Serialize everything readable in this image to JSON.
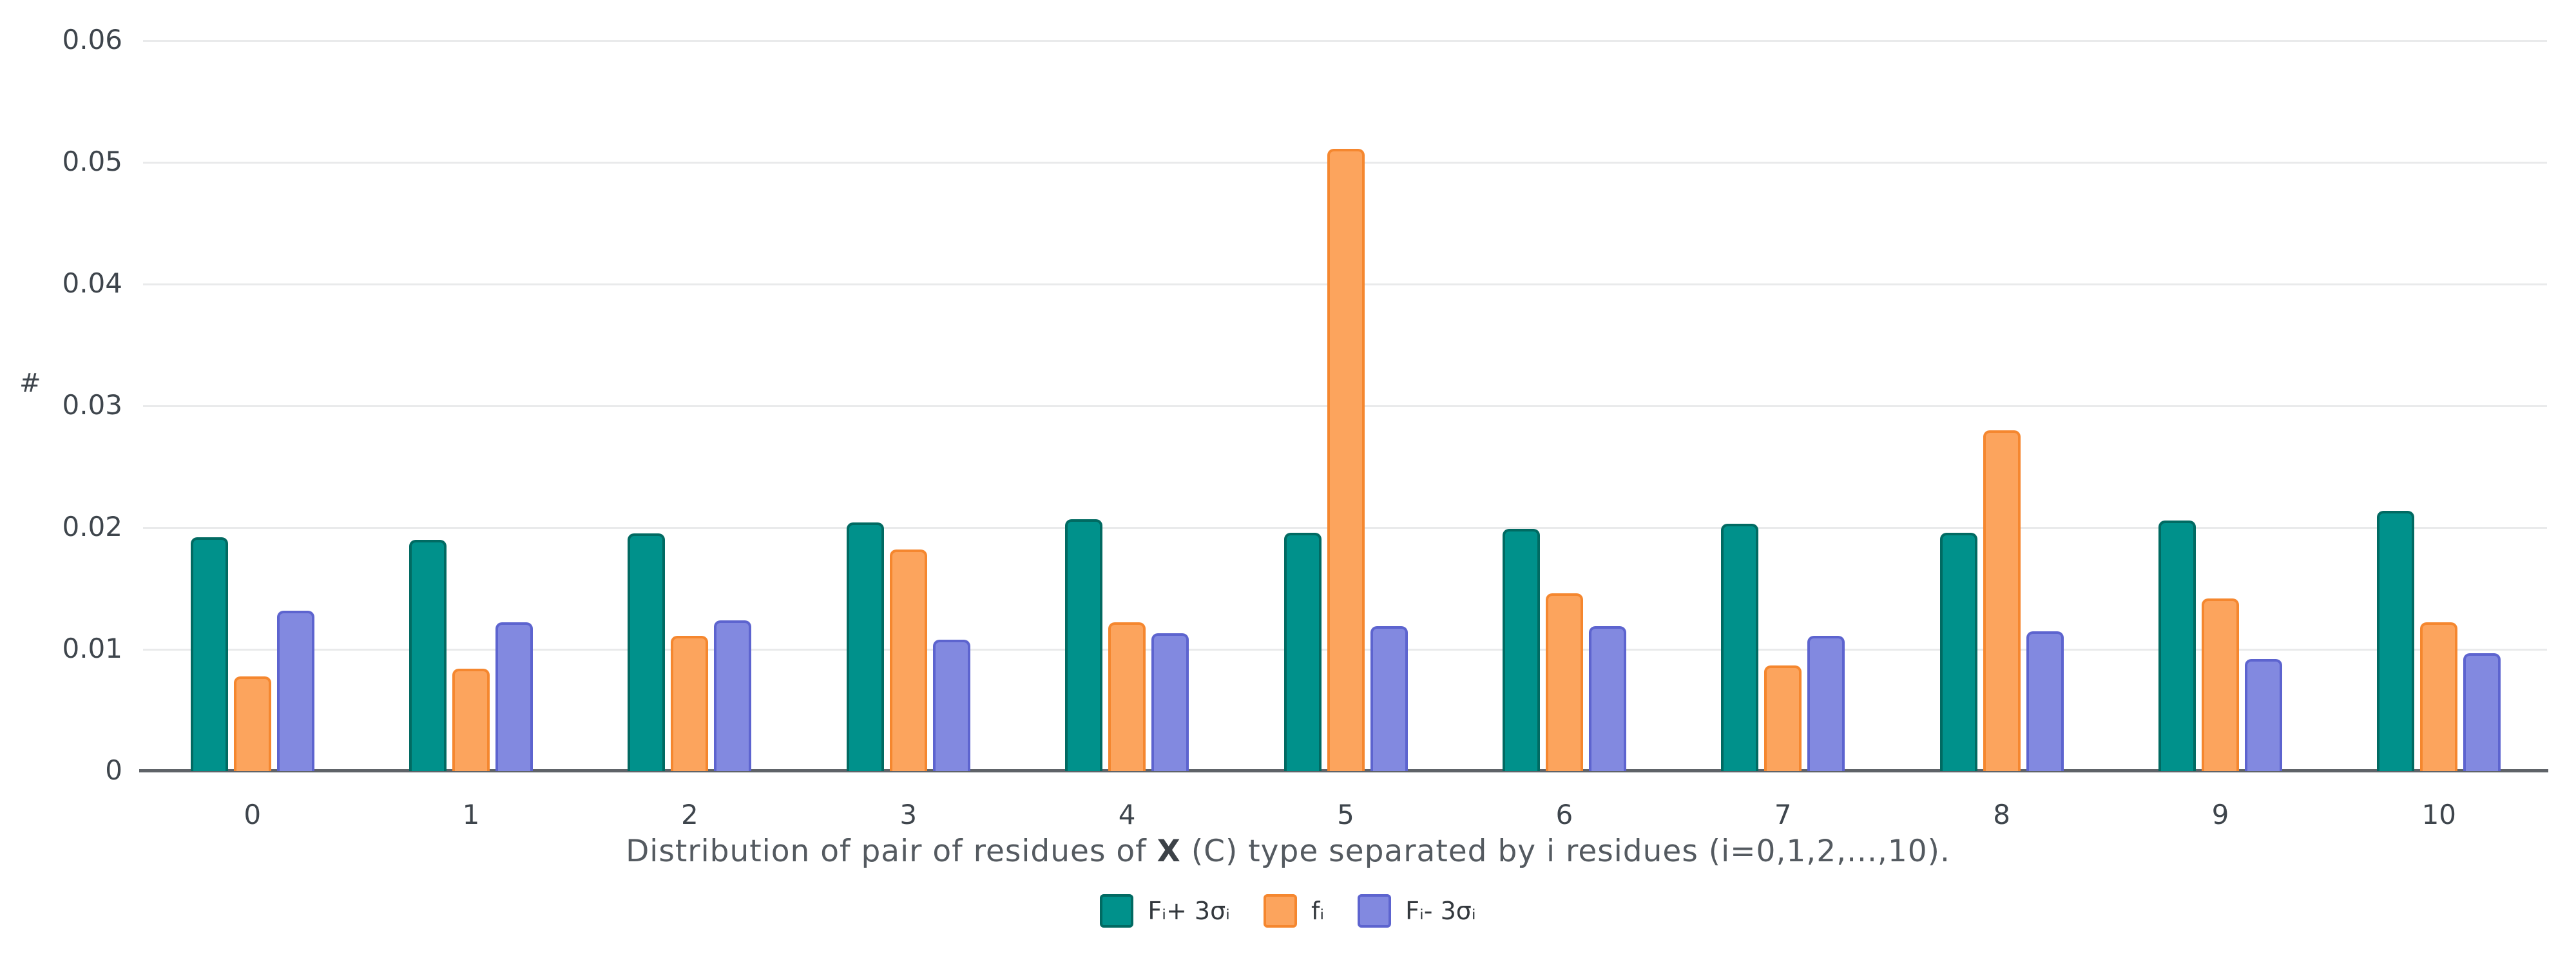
{
  "chart_data": {
    "type": "bar",
    "title_parts": [
      {
        "text": "Distribution of pair of residues of ",
        "bold": false
      },
      {
        "text": "X",
        "bold": true
      },
      {
        "text": " (C) type separated by i residues (i=0,1,2,...,10).",
        "bold": false
      }
    ],
    "xlabel": "Distribution of pair of residues of X (C) type separated by i residues (i=0,1,2,...,10).",
    "ylabel": "#",
    "categories": [
      "0",
      "1",
      "2",
      "3",
      "4",
      "5",
      "6",
      "7",
      "8",
      "9",
      "10"
    ],
    "y_ticks": [
      "0",
      "0.01",
      "0.02",
      "0.03",
      "0.04",
      "0.05",
      "0.06"
    ],
    "ylim": [
      0,
      0.06
    ],
    "grid": true,
    "legend_position": "bottom",
    "series": [
      {
        "name": "Fᵢ+ 3σᵢ",
        "color": "#00918b",
        "border_color": "#016a62",
        "values": [
          0.0192,
          0.019,
          0.0195,
          0.0204,
          0.0207,
          0.0196,
          0.0199,
          0.0203,
          0.0196,
          0.0206,
          0.0214
        ]
      },
      {
        "name": "fᵢ",
        "color": "#fca45d",
        "border_color": "#f5872f",
        "values": [
          0.0078,
          0.0084,
          0.0111,
          0.0182,
          0.0122,
          0.0511,
          0.0146,
          0.0087,
          0.028,
          0.0142,
          0.0122
        ]
      },
      {
        "name": "Fᵢ- 3σᵢ",
        "color": "#8289e0",
        "border_color": "#5d64cf",
        "values": [
          0.0132,
          0.0122,
          0.0124,
          0.0108,
          0.0113,
          0.0119,
          0.0119,
          0.0111,
          0.0115,
          0.0092,
          0.0097
        ]
      }
    ]
  },
  "colors": {
    "gridline": "#e9eaeb",
    "axis_line": "#5f6368",
    "tick_text": "#3e454c",
    "title_text": "#545a60",
    "background": "#ffffff"
  }
}
